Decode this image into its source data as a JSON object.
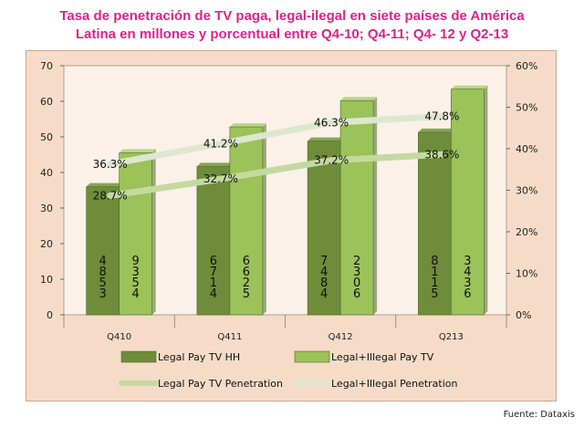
{
  "title_line1": "Tasa de penetración de TV paga, legal-ilegal en siete países de América",
  "title_line2": "Latina en millones y porcentual entre Q4-10; Q4-11; Q4- 12 y Q2-13",
  "source": "Fuente: Dataxis",
  "colors": {
    "legal_bar": "#6e8c3a",
    "total_bar": "#9cc25a",
    "legal_line": "#c4d9a0",
    "total_line": "#dde7cf",
    "plot_bg": "#fbf1e8",
    "frame_bg": "#f6dcc8"
  },
  "chart_data": {
    "type": "bar",
    "categories": [
      "Q410",
      "Q411",
      "Q412",
      "Q213"
    ],
    "series": [
      {
        "name": "Legal Pay TV HH",
        "kind": "bar",
        "axis": "left",
        "values": [
          36,
          41.7,
          48.8,
          51.3
        ],
        "data_labels": [
          "4\n8\n5\n3",
          "6\n7\n1\n4",
          "7\n4\n8\n4",
          "8\n1\n1\n5"
        ]
      },
      {
        "name": "Legal+Illegal Pay TV",
        "kind": "bar",
        "axis": "left",
        "values": [
          45.5,
          52.8,
          60.2,
          63.4
        ],
        "data_labels": [
          "9\n3\n5\n4",
          "6\n6\n2\n5",
          "2\n3\n0\n6",
          "3\n4\n3\n6"
        ]
      },
      {
        "name": "Legal Pay TV Penetration",
        "kind": "line",
        "axis": "right",
        "values": [
          28.7,
          32.7,
          37.2,
          38.6
        ],
        "data_labels": [
          "28.7%",
          "32.7%",
          "37.2%",
          "38.6%"
        ]
      },
      {
        "name": "Legal+Illegal Penetration",
        "kind": "line",
        "axis": "right",
        "values": [
          36.3,
          41.2,
          46.3,
          47.8
        ],
        "data_labels": [
          "36.3%",
          "41.2%",
          "46.3%",
          "47.8%"
        ]
      }
    ],
    "y_left": {
      "min": 0,
      "max": 70,
      "ticks": [
        "0",
        "10",
        "20",
        "30",
        "40",
        "50",
        "60",
        "70"
      ]
    },
    "y_right": {
      "min": 0,
      "max": 60,
      "ticks": [
        "0%",
        "10%",
        "20%",
        "30%",
        "40%",
        "50%",
        "60%"
      ]
    },
    "grid": false,
    "legend_position": "bottom"
  }
}
